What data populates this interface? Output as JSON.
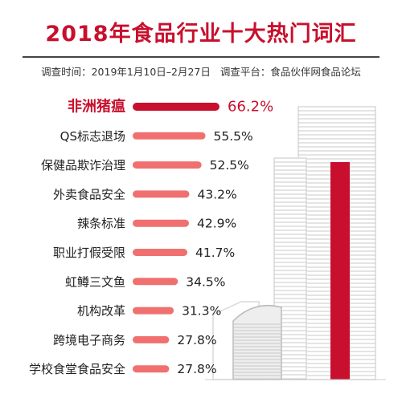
{
  "header": {
    "title": "2018年食品行业十大热门词汇",
    "survey_time_label": "调查时间：2019年1月10日–2月27日",
    "survey_platform_label": "调查平台：食品伙伴网食品论坛"
  },
  "colors": {
    "title": "#c8102e",
    "highlight_bar": "#c8102e",
    "bar": "#f07070",
    "building": "#d9d9d9",
    "building_window": "#c8c8c8"
  },
  "chart_data": {
    "type": "bar",
    "orientation": "horizontal",
    "categories": [
      "非洲猪瘟",
      "QS标志退场",
      "保健品欺诈治理",
      "外卖食品安全",
      "辣条标准",
      "职业打假受限",
      "虹鳟三文鱼",
      "机构改革",
      "跨境电子商务",
      "学校食堂食品安全"
    ],
    "values": [
      66.2,
      55.5,
      52.5,
      43.2,
      42.9,
      41.7,
      34.5,
      31.3,
      27.8,
      27.8
    ],
    "value_labels": [
      "66.2%",
      "55.5%",
      "52.5%",
      "43.2%",
      "42.9%",
      "41.7%",
      "34.5%",
      "31.3%",
      "27.8%",
      "27.8%"
    ],
    "highlight_index": 0,
    "unit": "%"
  }
}
